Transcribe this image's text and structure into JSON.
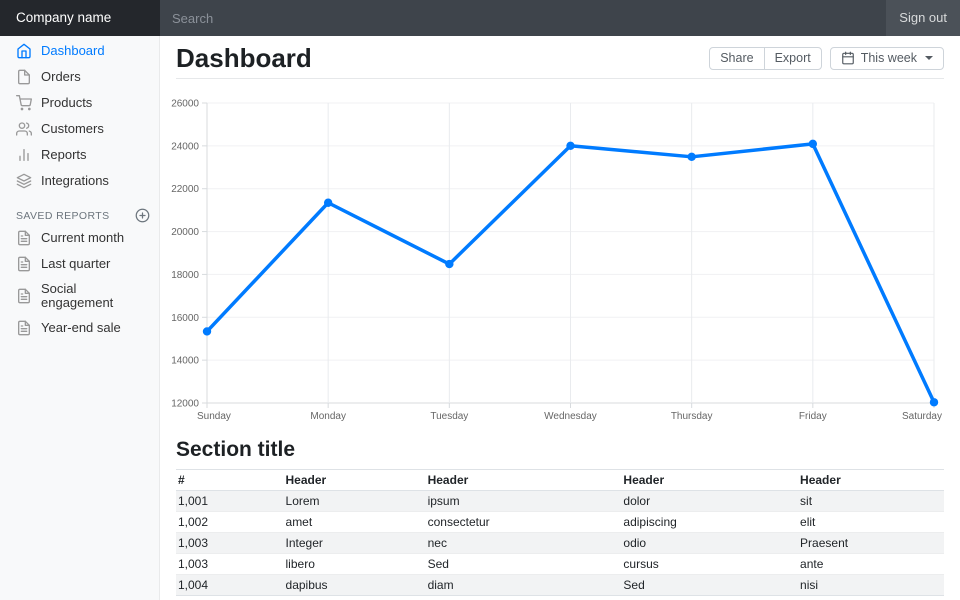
{
  "navbar": {
    "brand": "Company name",
    "search_placeholder": "Search",
    "sign_out": "Sign out"
  },
  "sidebar": {
    "items": [
      {
        "label": "Dashboard",
        "icon": "home-icon",
        "active": true
      },
      {
        "label": "Orders",
        "icon": "file-icon",
        "active": false
      },
      {
        "label": "Products",
        "icon": "shopping-cart-icon",
        "active": false
      },
      {
        "label": "Customers",
        "icon": "users-icon",
        "active": false
      },
      {
        "label": "Reports",
        "icon": "bar-chart-icon",
        "active": false
      },
      {
        "label": "Integrations",
        "icon": "layers-icon",
        "active": false
      }
    ],
    "saved_reports_heading": "Saved reports",
    "saved_reports_add_icon": "plus-circle-icon",
    "saved_reports": [
      {
        "label": "Current month",
        "icon": "file-text-icon"
      },
      {
        "label": "Last quarter",
        "icon": "file-text-icon"
      },
      {
        "label": "Social engagement",
        "icon": "file-text-icon"
      },
      {
        "label": "Year-end sale",
        "icon": "file-text-icon"
      }
    ]
  },
  "header": {
    "title": "Dashboard",
    "share_label": "Share",
    "export_label": "Export",
    "period_label": "This week",
    "period_icon": "calendar-icon"
  },
  "chart_data": {
    "type": "line",
    "x": [
      "Sunday",
      "Monday",
      "Tuesday",
      "Wednesday",
      "Thursday",
      "Friday",
      "Saturday"
    ],
    "series": [
      {
        "name": "",
        "values": [
          15339,
          21345,
          18483,
          24003,
          23489,
          24092,
          12034
        ]
      }
    ],
    "title": "",
    "xlabel": "",
    "ylabel": "",
    "ylim": [
      12000,
      26000
    ],
    "yticks": [
      12000,
      14000,
      16000,
      18000,
      20000,
      22000,
      24000,
      26000
    ],
    "grid": true,
    "legend": false,
    "line_color": "#007bff",
    "point_radius": 4.2
  },
  "section": {
    "title": "Section title",
    "table": {
      "headers": [
        "#",
        "Header",
        "Header",
        "Header",
        "Header"
      ],
      "rows": [
        [
          "1,001",
          "Lorem",
          "ipsum",
          "dolor",
          "sit"
        ],
        [
          "1,002",
          "amet",
          "consectetur",
          "adipiscing",
          "elit"
        ],
        [
          "1,003",
          "Integer",
          "nec",
          "odio",
          "Praesent"
        ],
        [
          "1,003",
          "libero",
          "Sed",
          "cursus",
          "ante"
        ],
        [
          "1,004",
          "dapibus",
          "diam",
          "Sed",
          "nisi"
        ]
      ]
    }
  },
  "colors": {
    "accent": "#007bff",
    "brand_bg": "#24272c",
    "navbar_bg": "#4b5158",
    "search_bg": "#3e444b",
    "sidebar_bg": "#f8f9fa",
    "muted_text": "#6c757d",
    "tick_text": "#666666"
  }
}
